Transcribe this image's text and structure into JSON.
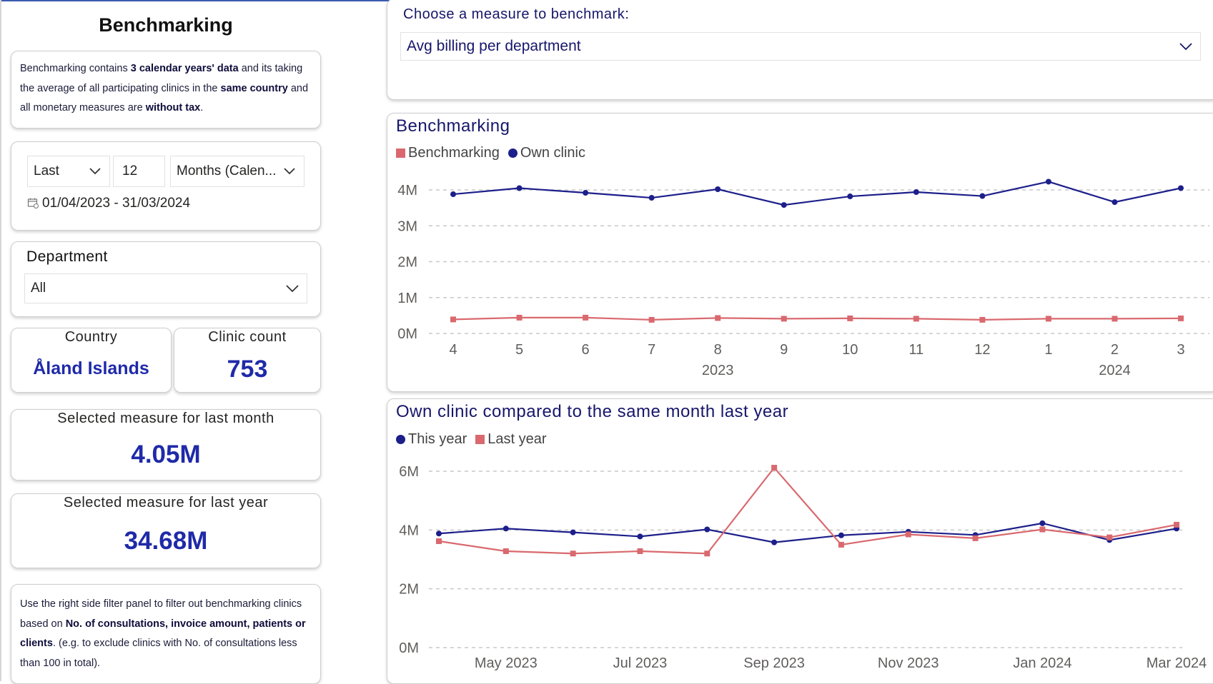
{
  "left": {
    "title": "Benchmarking",
    "info": {
      "p1": "Benchmarking contains ",
      "b1": "3 calendar years' data",
      "p2": " and its taking the average of all participating clinics in the ",
      "b2": "same country",
      "p3": " and all monetary measures are ",
      "b3": "without tax",
      "p4": "."
    },
    "date_filter": {
      "mode": "Last",
      "count": "12",
      "unit": "Months (Calen...",
      "range": "01/04/2023 - 31/03/2024",
      "calendar_icon": "calendar-icon"
    },
    "department": {
      "label": "Department",
      "value": "All"
    },
    "country": {
      "label": "Country",
      "value": "Åland Islands"
    },
    "clinic_count": {
      "label": "Clinic count",
      "value": "753"
    },
    "last_month": {
      "label": "Selected measure for last month",
      "value": "4.05M"
    },
    "last_year": {
      "label": "Selected measure for last year",
      "value": "34.68M"
    },
    "note": {
      "p1": "Use the right side filter panel to filter out benchmarking clinics based on ",
      "b1": "No. of consultations, invoice amount, patients or clients",
      "p2": ". (e.g. to exclude clinics with No. of consultations less than 100 in total)."
    }
  },
  "measure": {
    "label": "Choose a measure to benchmark:",
    "value": "Avg billing per department"
  },
  "colors": {
    "navy": "#1c1f8a",
    "salmon": "#d9696e",
    "accent": "#1f2aa8"
  },
  "chart_data": [
    {
      "type": "line",
      "title": "Benchmarking",
      "categories": [
        "4",
        "5",
        "6",
        "7",
        "8",
        "9",
        "10",
        "11",
        "12",
        "1",
        "2",
        "3"
      ],
      "x_groups": [
        {
          "label": "2023",
          "center": "8"
        },
        {
          "label": "2024",
          "center": "2"
        }
      ],
      "series": [
        {
          "name": "Benchmarking",
          "marker": "square",
          "color": "#d9696e",
          "values": [
            0.39,
            0.44,
            0.44,
            0.38,
            0.43,
            0.41,
            0.42,
            0.41,
            0.38,
            0.41,
            0.41,
            0.42
          ]
        },
        {
          "name": "Own clinic",
          "marker": "circle",
          "color": "#1c1f8a",
          "values": [
            3.88,
            4.05,
            3.92,
            3.78,
            4.02,
            3.58,
            3.82,
            3.94,
            3.83,
            4.23,
            3.66,
            4.05
          ]
        }
      ],
      "yticks": [
        "0M",
        "1M",
        "2M",
        "3M",
        "4M"
      ],
      "ylim": [
        0,
        4
      ],
      "grid": true,
      "legend": "top-left"
    },
    {
      "type": "line",
      "title": "Own clinic compared to the same month last year",
      "x": [
        "Apr 2023",
        "May 2023",
        "Jun 2023",
        "Jul 2023",
        "Aug 2023",
        "Sep 2023",
        "Oct 2023",
        "Nov 2023",
        "Dec 2023",
        "Jan 2024",
        "Feb 2024",
        "Mar 2024"
      ],
      "xticks": [
        "May 2023",
        "Jul 2023",
        "Sep 2023",
        "Nov 2023",
        "Jan 2024",
        "Mar 2024"
      ],
      "series": [
        {
          "name": "This year",
          "marker": "circle",
          "color": "#1c1f8a",
          "values": [
            3.88,
            4.05,
            3.92,
            3.78,
            4.02,
            3.58,
            3.82,
            3.94,
            3.83,
            4.23,
            3.66,
            4.05
          ]
        },
        {
          "name": "Last year",
          "marker": "square",
          "color": "#d9696e",
          "values": [
            3.62,
            3.28,
            3.2,
            3.28,
            3.2,
            6.12,
            3.5,
            3.85,
            3.72,
            4.02,
            3.75,
            4.18
          ]
        }
      ],
      "yticks": [
        "0M",
        "2M",
        "4M",
        "6M"
      ],
      "ylim": [
        0,
        6
      ],
      "grid": true,
      "legend": "top-left"
    }
  ]
}
